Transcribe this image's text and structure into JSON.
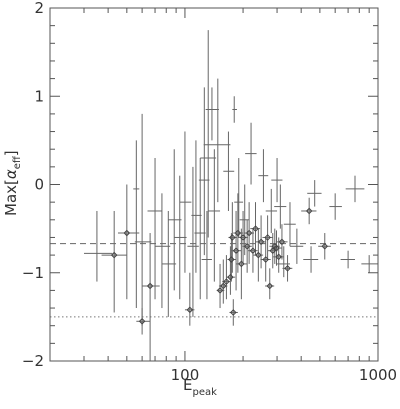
{
  "chart_data": {
    "type": "scatter",
    "xscale": "log",
    "xlim": [
      20,
      1000
    ],
    "ylim": [
      -2,
      2
    ],
    "xlabel": {
      "main": "E",
      "sub": "peak"
    },
    "ylabel": {
      "main": "Max[",
      "alpha": "α",
      "sub": "eff",
      "close": "]"
    },
    "x_ticks": [
      {
        "value": 100,
        "label": "100"
      },
      {
        "value": 1000,
        "label": "1000"
      }
    ],
    "y_ticks": [
      {
        "value": -2,
        "label": "−2"
      },
      {
        "value": -1,
        "label": "−1"
      },
      {
        "value": 0,
        "label": "0"
      },
      {
        "value": 1,
        "label": "1"
      },
      {
        "value": 2,
        "label": "2"
      }
    ],
    "reference_lines": [
      {
        "y": -0.67,
        "style": "dashed"
      },
      {
        "y": -1.5,
        "style": "dotted"
      }
    ],
    "grid": false,
    "colors": {
      "frame": "#555555",
      "marker": "#444444",
      "error": "#666666",
      "dashed": "#666666",
      "dotted": "#777777"
    },
    "points": [
      {
        "x": 35,
        "y": -0.78,
        "xlo": 30,
        "xhi": 42,
        "ylo": -1.1,
        "yhi": -0.3,
        "m": false
      },
      {
        "x": 43,
        "y": -0.8,
        "xlo": 37,
        "xhi": 50,
        "ylo": -1.45,
        "yhi": -0.3,
        "m": true
      },
      {
        "x": 50,
        "y": -0.55,
        "xlo": 45,
        "xhi": 58,
        "ylo": -1.3,
        "yhi": 0.0,
        "m": true
      },
      {
        "x": 56,
        "y": -0.05,
        "xlo": 54,
        "xhi": 58,
        "ylo": -1.4,
        "yhi": 0.5,
        "m": false
      },
      {
        "x": 60,
        "y": -1.55,
        "xlo": 56,
        "xhi": 66,
        "ylo": -1.7,
        "yhi": -1.4,
        "m": true
      },
      {
        "x": 60,
        "y": -0.65,
        "xlo": 55,
        "xhi": 67,
        "ylo": -1.6,
        "yhi": 0.8,
        "m": false
      },
      {
        "x": 66,
        "y": -1.15,
        "xlo": 60,
        "xhi": 74,
        "ylo": -2.0,
        "yhi": -0.55,
        "m": true
      },
      {
        "x": 70,
        "y": -0.3,
        "xlo": 64,
        "xhi": 76,
        "ylo": -1.3,
        "yhi": 0.3,
        "m": false
      },
      {
        "x": 76,
        "y": -0.7,
        "xlo": 70,
        "xhi": 84,
        "ylo": -1.4,
        "yhi": -0.1,
        "m": false
      },
      {
        "x": 82,
        "y": -0.9,
        "xlo": 76,
        "xhi": 90,
        "ylo": -1.5,
        "yhi": -0.3,
        "m": false
      },
      {
        "x": 88,
        "y": -0.4,
        "xlo": 82,
        "xhi": 96,
        "ylo": -1.2,
        "yhi": 0.4,
        "m": false
      },
      {
        "x": 94,
        "y": -0.6,
        "xlo": 88,
        "xhi": 102,
        "ylo": -1.3,
        "yhi": 0.1,
        "m": false
      },
      {
        "x": 100,
        "y": -0.2,
        "xlo": 94,
        "xhi": 108,
        "ylo": -1.0,
        "yhi": 0.6,
        "m": false
      },
      {
        "x": 106,
        "y": -1.42,
        "xlo": 100,
        "xhi": 112,
        "ylo": -1.6,
        "yhi": -1.0,
        "m": true
      },
      {
        "x": 110,
        "y": -0.7,
        "xlo": 103,
        "xhi": 118,
        "ylo": -1.5,
        "yhi": 0.2,
        "m": false
      },
      {
        "x": 114,
        "y": -0.35,
        "xlo": 108,
        "xhi": 122,
        "ylo": -1.0,
        "yhi": 0.5,
        "m": false
      },
      {
        "x": 120,
        "y": -0.55,
        "xlo": 112,
        "xhi": 128,
        "ylo": -1.3,
        "yhi": 0.3,
        "m": false
      },
      {
        "x": 126,
        "y": 0.05,
        "xlo": 118,
        "xhi": 134,
        "ylo": -0.8,
        "yhi": 1.1,
        "m": false
      },
      {
        "x": 130,
        "y": -0.85,
        "xlo": 122,
        "xhi": 138,
        "ylo": -1.3,
        "yhi": -0.3,
        "m": false
      },
      {
        "x": 132,
        "y": 0.3,
        "xlo": 120,
        "xhi": 145,
        "ylo": -0.6,
        "yhi": 1.75,
        "m": false
      },
      {
        "x": 138,
        "y": 0.85,
        "xlo": 128,
        "xhi": 150,
        "ylo": 0.5,
        "yhi": 1.1,
        "m": false
      },
      {
        "x": 142,
        "y": -0.3,
        "xlo": 132,
        "xhi": 152,
        "ylo": -1.1,
        "yhi": 0.4,
        "m": false
      },
      {
        "x": 148,
        "y": 0.45,
        "xlo": 125,
        "xhi": 172,
        "ylo": -0.2,
        "yhi": 1.2,
        "m": false
      },
      {
        "x": 152,
        "y": -1.2,
        "xlo": 146,
        "xhi": 160,
        "ylo": -1.4,
        "yhi": -0.9,
        "m": true
      },
      {
        "x": 158,
        "y": -1.15,
        "xlo": 150,
        "xhi": 166,
        "ylo": -1.35,
        "yhi": -0.85,
        "m": true
      },
      {
        "x": 164,
        "y": -1.1,
        "xlo": 156,
        "xhi": 172,
        "ylo": -1.3,
        "yhi": -0.8,
        "m": true
      },
      {
        "x": 168,
        "y": 0.15,
        "xlo": 158,
        "xhi": 180,
        "ylo": -0.3,
        "yhi": 0.6,
        "m": false
      },
      {
        "x": 172,
        "y": -1.05,
        "xlo": 164,
        "xhi": 182,
        "ylo": -1.25,
        "yhi": -0.7,
        "m": true
      },
      {
        "x": 174,
        "y": -0.85,
        "xlo": 166,
        "xhi": 184,
        "ylo": -1.1,
        "yhi": -0.55,
        "m": true
      },
      {
        "x": 176,
        "y": -0.6,
        "xlo": 168,
        "xhi": 186,
        "ylo": -1.0,
        "yhi": -0.2,
        "m": true
      },
      {
        "x": 178,
        "y": -1.45,
        "xlo": 170,
        "xhi": 188,
        "ylo": -1.6,
        "yhi": -1.3,
        "m": true
      },
      {
        "x": 180,
        "y": 0.85,
        "xlo": 176,
        "xhi": 186,
        "ylo": 0.7,
        "yhi": 1.0,
        "m": false
      },
      {
        "x": 184,
        "y": -0.75,
        "xlo": 174,
        "xhi": 196,
        "ylo": -1.2,
        "yhi": -0.3,
        "m": true
      },
      {
        "x": 188,
        "y": -0.55,
        "xlo": 178,
        "xhi": 200,
        "ylo": -1.0,
        "yhi": -0.1,
        "m": true
      },
      {
        "x": 190,
        "y": -0.2,
        "xlo": 180,
        "xhi": 200,
        "ylo": -0.6,
        "yhi": 0.3,
        "m": false
      },
      {
        "x": 196,
        "y": -0.9,
        "xlo": 185,
        "xhi": 210,
        "ylo": -1.3,
        "yhi": -0.5,
        "m": true
      },
      {
        "x": 200,
        "y": -0.6,
        "xlo": 188,
        "xhi": 212,
        "ylo": -0.9,
        "yhi": -0.3,
        "m": true
      },
      {
        "x": 204,
        "y": -0.4,
        "xlo": 192,
        "xhi": 216,
        "ylo": -0.8,
        "yhi": 0.0,
        "m": false
      },
      {
        "x": 210,
        "y": -0.7,
        "xlo": 198,
        "xhi": 222,
        "ylo": -1.0,
        "yhi": -0.4,
        "m": true
      },
      {
        "x": 215,
        "y": -0.55,
        "xlo": 202,
        "xhi": 228,
        "ylo": -0.9,
        "yhi": -0.2,
        "m": true
      },
      {
        "x": 220,
        "y": 0.35,
        "xlo": 205,
        "xhi": 235,
        "ylo": 0.0,
        "yhi": 0.7,
        "m": false
      },
      {
        "x": 225,
        "y": -0.75,
        "xlo": 212,
        "xhi": 238,
        "ylo": -1.0,
        "yhi": -0.5,
        "m": true
      },
      {
        "x": 232,
        "y": -0.5,
        "xlo": 218,
        "xhi": 245,
        "ylo": -0.8,
        "yhi": -0.2,
        "m": true
      },
      {
        "x": 240,
        "y": -0.8,
        "xlo": 226,
        "xhi": 254,
        "ylo": -1.1,
        "yhi": -0.5,
        "m": true
      },
      {
        "x": 248,
        "y": -0.65,
        "xlo": 232,
        "xhi": 262,
        "ylo": -0.95,
        "yhi": -0.35,
        "m": true
      },
      {
        "x": 255,
        "y": 0.1,
        "xlo": 240,
        "xhi": 270,
        "ylo": -0.2,
        "yhi": 0.4,
        "m": false
      },
      {
        "x": 262,
        "y": -0.85,
        "xlo": 246,
        "xhi": 278,
        "ylo": -1.1,
        "yhi": -0.6,
        "m": true
      },
      {
        "x": 268,
        "y": -0.6,
        "xlo": 252,
        "xhi": 285,
        "ylo": -0.85,
        "yhi": -0.35,
        "m": true
      },
      {
        "x": 275,
        "y": -1.15,
        "xlo": 260,
        "xhi": 290,
        "ylo": -1.3,
        "yhi": -0.95,
        "m": true
      },
      {
        "x": 280,
        "y": -0.3,
        "xlo": 262,
        "xhi": 300,
        "ylo": -0.55,
        "yhi": -0.05,
        "m": false
      },
      {
        "x": 285,
        "y": -0.75,
        "xlo": 268,
        "xhi": 302,
        "ylo": -0.95,
        "yhi": -0.55,
        "m": true
      },
      {
        "x": 292,
        "y": -0.7,
        "xlo": 274,
        "xhi": 310,
        "ylo": -0.9,
        "yhi": -0.5,
        "m": true
      },
      {
        "x": 298,
        "y": -0.72,
        "xlo": 280,
        "xhi": 318,
        "ylo": -0.92,
        "yhi": -0.52,
        "m": true
      },
      {
        "x": 300,
        "y": 0.05,
        "xlo": 280,
        "xhi": 320,
        "ylo": -0.2,
        "yhi": 0.3,
        "m": false
      },
      {
        "x": 306,
        "y": -0.82,
        "xlo": 286,
        "xhi": 326,
        "ylo": -1.0,
        "yhi": -0.6,
        "m": true
      },
      {
        "x": 312,
        "y": -0.25,
        "xlo": 290,
        "xhi": 335,
        "ylo": -0.5,
        "yhi": 0.0,
        "m": false
      },
      {
        "x": 318,
        "y": -0.65,
        "xlo": 296,
        "xhi": 340,
        "ylo": -0.85,
        "yhi": -0.45,
        "m": true
      },
      {
        "x": 325,
        "y": -0.9,
        "xlo": 300,
        "xhi": 350,
        "ylo": -1.05,
        "yhi": -0.7,
        "m": false
      },
      {
        "x": 340,
        "y": -0.95,
        "xlo": 320,
        "xhi": 360,
        "ylo": -1.1,
        "yhi": -0.8,
        "m": true
      },
      {
        "x": 350,
        "y": -0.45,
        "xlo": 325,
        "xhi": 375,
        "ylo": -0.7,
        "yhi": -0.2,
        "m": false
      },
      {
        "x": 380,
        "y": -0.7,
        "xlo": 350,
        "xhi": 410,
        "ylo": -0.9,
        "yhi": -0.5,
        "m": false
      },
      {
        "x": 440,
        "y": -0.3,
        "xlo": 400,
        "xhi": 480,
        "ylo": -0.45,
        "yhi": -0.15,
        "m": true
      },
      {
        "x": 450,
        "y": -0.85,
        "xlo": 410,
        "xhi": 490,
        "ylo": -1.0,
        "yhi": -0.7,
        "m": false
      },
      {
        "x": 470,
        "y": -0.1,
        "xlo": 430,
        "xhi": 510,
        "ylo": -0.25,
        "yhi": 0.05,
        "m": false
      },
      {
        "x": 530,
        "y": -0.7,
        "xlo": 490,
        "xhi": 570,
        "ylo": -0.85,
        "yhi": -0.55,
        "m": true
      },
      {
        "x": 600,
        "y": -0.25,
        "xlo": 560,
        "xhi": 650,
        "ylo": -0.4,
        "yhi": -0.1,
        "m": false
      },
      {
        "x": 700,
        "y": -0.85,
        "xlo": 640,
        "xhi": 760,
        "ylo": -0.95,
        "yhi": -0.75,
        "m": false
      },
      {
        "x": 760,
        "y": -0.05,
        "xlo": 680,
        "xhi": 850,
        "ylo": -0.2,
        "yhi": 0.1,
        "m": false
      },
      {
        "x": 900,
        "y": -0.9,
        "xlo": 820,
        "xhi": 1000,
        "ylo": -1.0,
        "yhi": -0.8,
        "m": false
      }
    ]
  }
}
